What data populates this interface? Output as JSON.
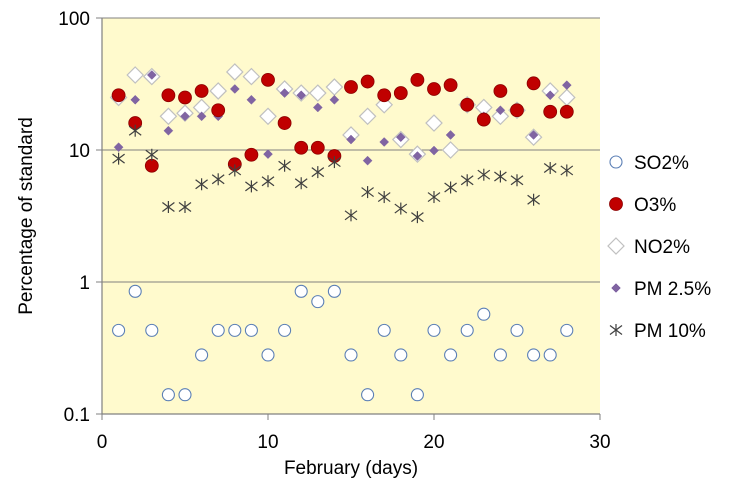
{
  "chart_data": {
    "type": "scatter",
    "title": "",
    "xlabel": "February (days)",
    "ylabel": "Percentage of standard",
    "xlim": [
      0,
      30
    ],
    "ylim": [
      0.1,
      100
    ],
    "y_scale": "log",
    "x_ticks": [
      "0",
      "10",
      "20",
      "30"
    ],
    "y_ticks": [
      "0.1",
      "1",
      "10",
      "100"
    ],
    "plot_background": "#fffacd",
    "grid": "horizontal major gridlines",
    "legend_position": "right",
    "series": [
      {
        "name": "SO2%",
        "marker": "circle-open",
        "color": "#5b7fb5",
        "fill": "#ffffff",
        "x": [
          1,
          2,
          3,
          4,
          5,
          6,
          7,
          8,
          9,
          10,
          11,
          12,
          13,
          14,
          15,
          16,
          17,
          18,
          19,
          20,
          21,
          22,
          23,
          24,
          25,
          26,
          27,
          28
        ],
        "y": [
          0.43,
          0.85,
          0.43,
          0.14,
          0.14,
          0.28,
          0.43,
          0.43,
          0.43,
          0.28,
          0.43,
          0.85,
          0.71,
          0.85,
          0.28,
          0.14,
          0.43,
          0.28,
          0.14,
          0.43,
          0.28,
          0.43,
          0.57,
          0.28,
          0.43,
          0.28,
          0.28,
          0.43
        ]
      },
      {
        "name": "O3%",
        "marker": "circle-filled",
        "color": "#c00000",
        "fill": "#c00000",
        "x": [
          1,
          2,
          3,
          4,
          5,
          6,
          7,
          8,
          9,
          10,
          11,
          12,
          13,
          14,
          15,
          16,
          17,
          18,
          19,
          20,
          21,
          22,
          23,
          24,
          25,
          26,
          27,
          28
        ],
        "y": [
          26,
          16,
          7.6,
          26,
          25,
          28,
          20,
          7.8,
          9.2,
          34,
          16,
          10.4,
          10.4,
          9,
          30,
          33,
          26,
          27,
          34,
          29,
          31,
          22,
          17,
          28,
          20,
          32,
          19.5,
          19.5
        ]
      },
      {
        "name": "NO2%",
        "marker": "diamond-open",
        "color": "#c0c0c0",
        "fill": "#ffffff",
        "x": [
          1,
          2,
          3,
          4,
          5,
          6,
          7,
          8,
          9,
          10,
          11,
          12,
          13,
          14,
          15,
          16,
          17,
          18,
          19,
          20,
          21,
          22,
          23,
          24,
          25,
          26,
          27,
          28
        ],
        "y": [
          25,
          37,
          36,
          18,
          19,
          21,
          28,
          39,
          36,
          18,
          29,
          27,
          27,
          30,
          13,
          18,
          22,
          12,
          9.3,
          16,
          10,
          22,
          21,
          18,
          20,
          12.5,
          28,
          25
        ]
      },
      {
        "name": "PM 2.5%",
        "marker": "diamond-filled",
        "color": "#8064a2",
        "fill": "#8064a2",
        "x": [
          1,
          2,
          3,
          4,
          5,
          6,
          7,
          8,
          9,
          10,
          11,
          12,
          13,
          14,
          15,
          16,
          17,
          18,
          19,
          20,
          21,
          22,
          23,
          24,
          25,
          26,
          27,
          28
        ],
        "y": [
          10.5,
          24,
          37,
          14,
          18,
          18,
          18,
          29,
          24,
          9.3,
          27,
          26,
          21,
          24,
          12,
          8.3,
          11.5,
          12.5,
          9,
          9.9,
          13,
          23,
          18,
          20,
          20,
          13,
          26,
          31
        ]
      },
      {
        "name": "PM 10%",
        "marker": "asterisk",
        "color": "#404040",
        "fill": "none",
        "x": [
          1,
          2,
          3,
          4,
          5,
          6,
          7,
          8,
          9,
          10,
          11,
          12,
          13,
          14,
          15,
          16,
          17,
          18,
          19,
          20,
          21,
          22,
          23,
          24,
          25,
          26,
          27,
          28
        ],
        "y": [
          8.6,
          14,
          9.2,
          3.7,
          3.7,
          5.5,
          6,
          7,
          5.3,
          5.8,
          7.6,
          5.6,
          6.8,
          8.1,
          3.2,
          4.8,
          4.4,
          3.6,
          3.1,
          4.4,
          5.2,
          5.9,
          6.5,
          6.3,
          5.9,
          4.2,
          7.3,
          7
        ]
      }
    ]
  }
}
